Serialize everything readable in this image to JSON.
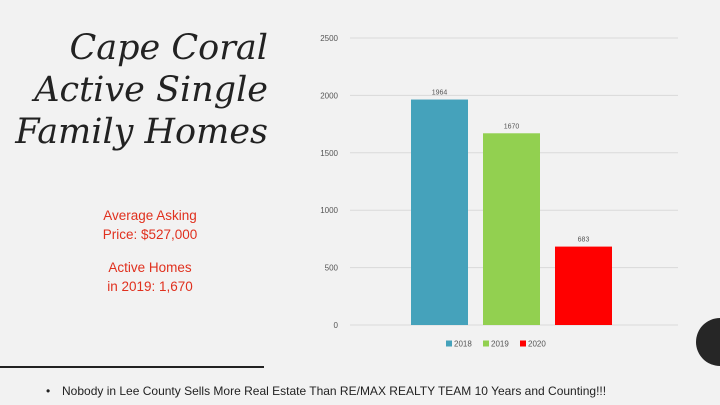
{
  "slide": {
    "title_lines": [
      "Cape Coral",
      "Active Single",
      "Family Homes"
    ],
    "stat1_lines": [
      "Average Asking",
      "Price: $527,000"
    ],
    "stat2_lines": [
      "Active Homes",
      "in 2019: 1,670"
    ],
    "footer_bullet": "•",
    "footer": "Nobody in Lee County Sells More Real Estate Than RE/MAX REALTY TEAM  10 Years and Counting!!!"
  },
  "chart_data": {
    "type": "bar",
    "title": "",
    "xlabel": "",
    "ylabel": "",
    "ylim": [
      0,
      2500
    ],
    "yticks": [
      0,
      500,
      1000,
      1500,
      2000,
      2500
    ],
    "grid": true,
    "legend_position": "bottom",
    "series": [
      {
        "name": "2018",
        "value": 1964,
        "color": "#45a2bb"
      },
      {
        "name": "2019",
        "value": 1670,
        "color": "#92d050"
      },
      {
        "name": "2020",
        "value": 683,
        "color": "#ff0000"
      }
    ]
  }
}
